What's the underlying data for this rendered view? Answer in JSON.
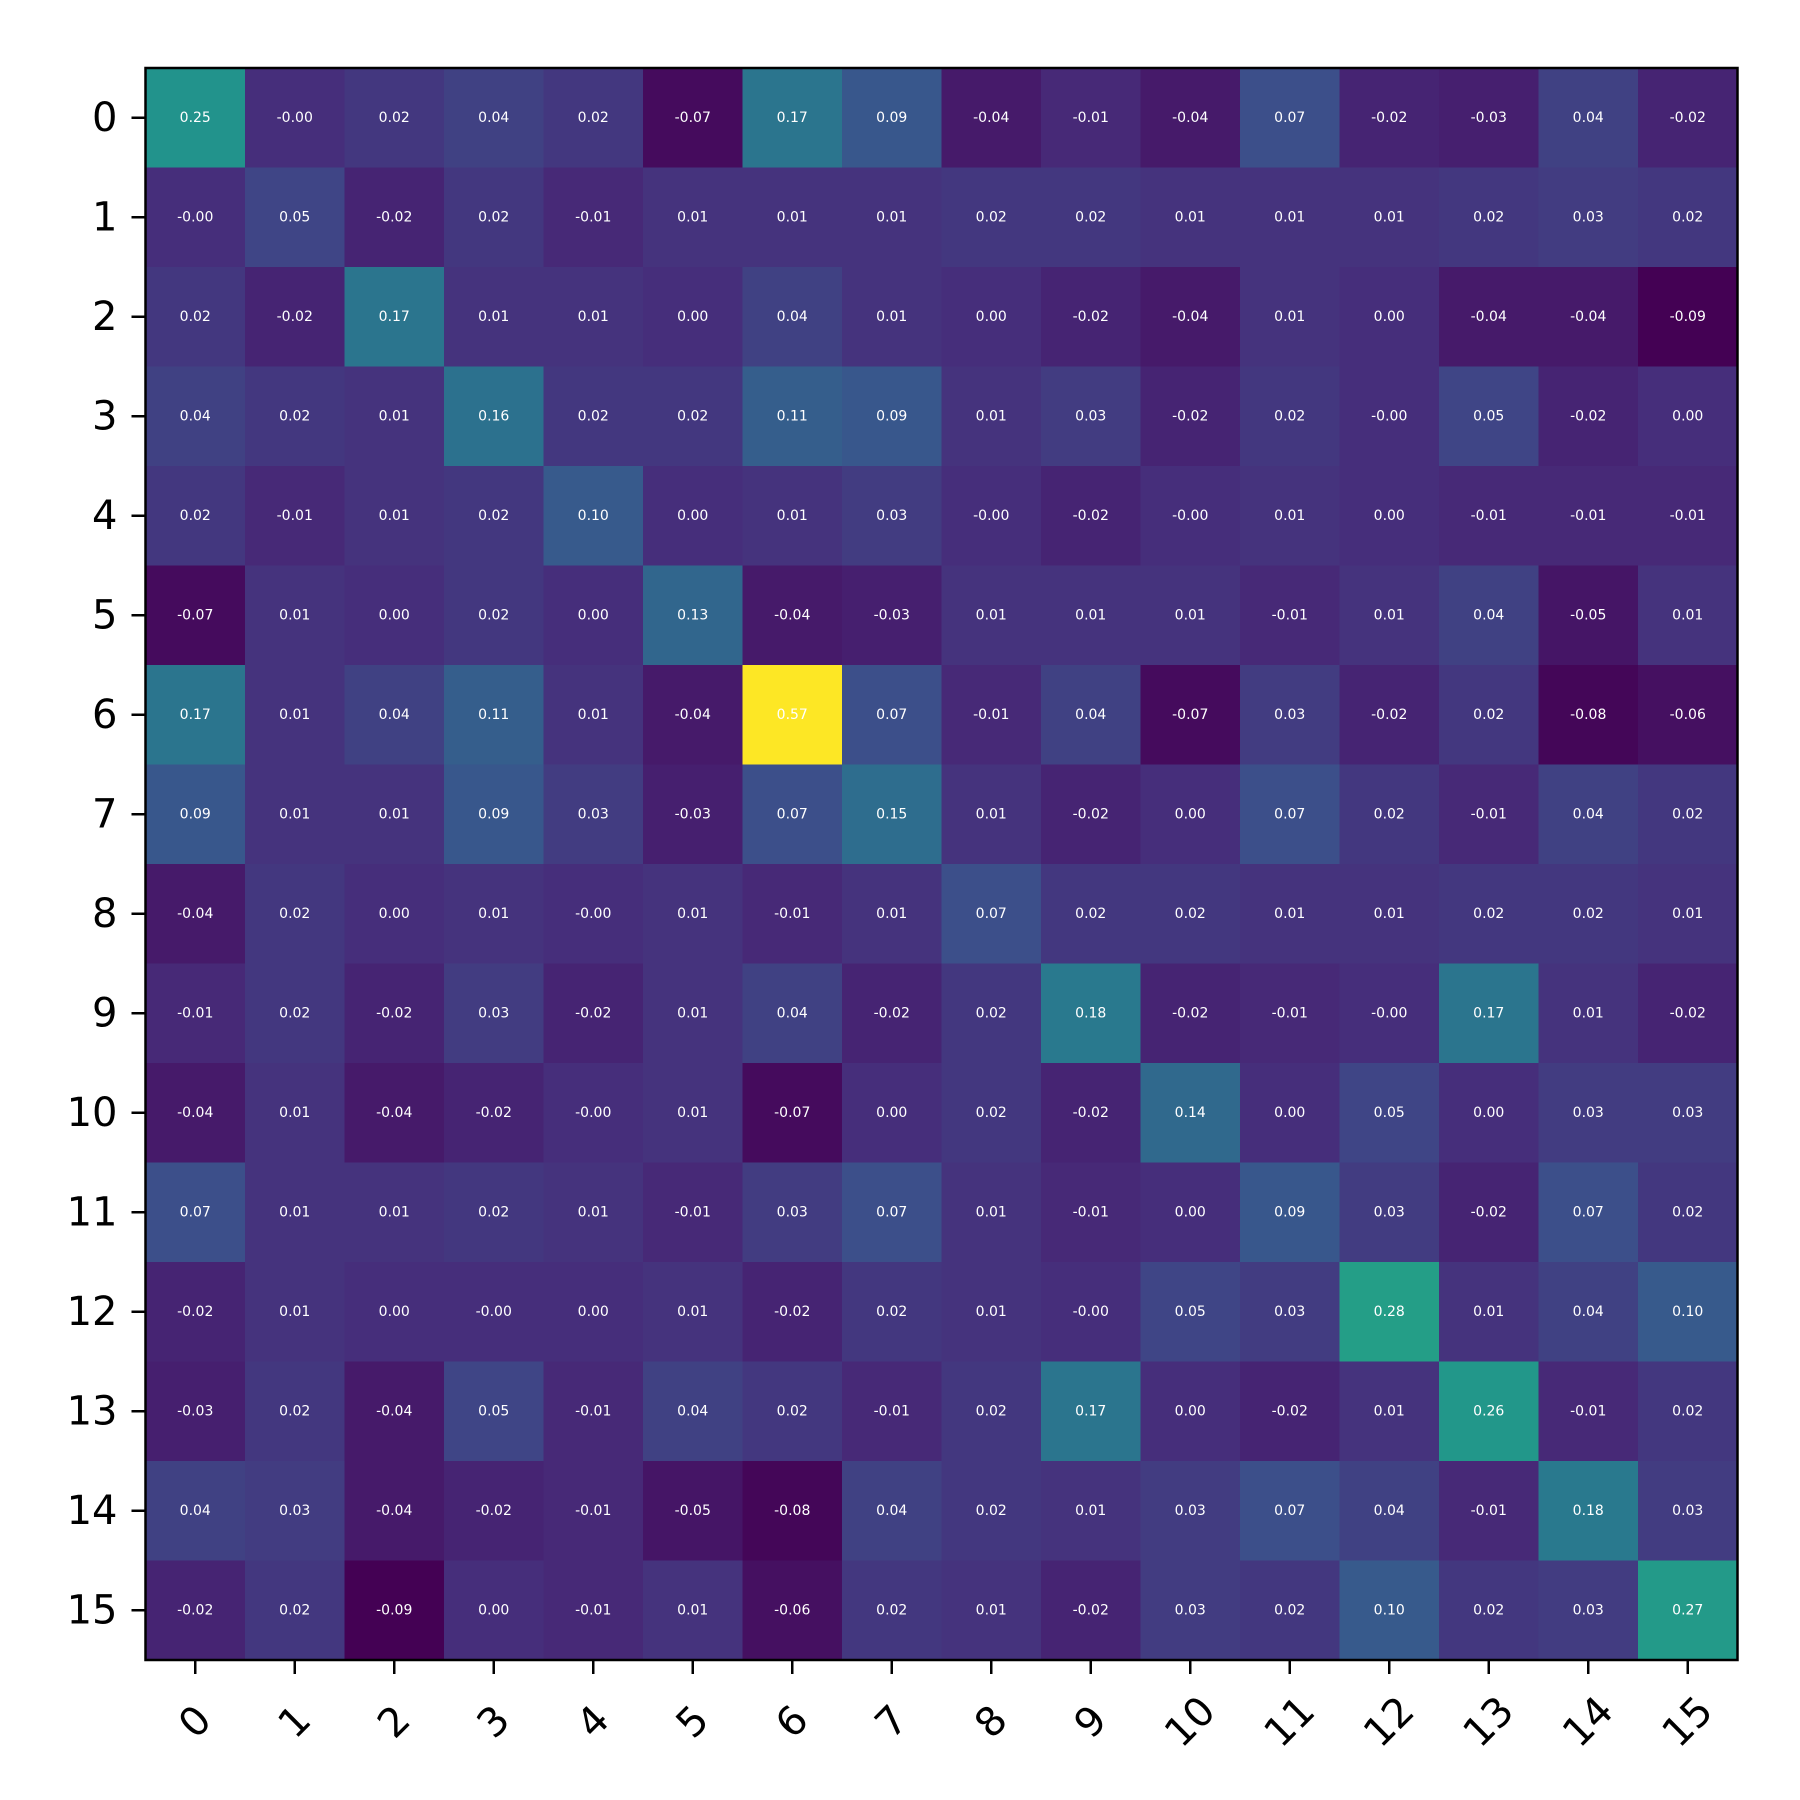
{
  "chart_data": {
    "type": "heatmap",
    "title": "",
    "xlabel": "",
    "ylabel": "",
    "colormap": "viridis",
    "vmin": -0.09,
    "vmax": 0.57,
    "grid": false,
    "x_tick_rotation_deg": 45,
    "x_categories": [
      "0",
      "1",
      "2",
      "3",
      "4",
      "5",
      "6",
      "7",
      "8",
      "9",
      "10",
      "11",
      "12",
      "13",
      "14",
      "15"
    ],
    "y_categories": [
      "0",
      "1",
      "2",
      "3",
      "4",
      "5",
      "6",
      "7",
      "8",
      "9",
      "10",
      "11",
      "12",
      "13",
      "14",
      "15"
    ],
    "values": [
      [
        0.25,
        -0.0,
        0.02,
        0.04,
        0.02,
        -0.07,
        0.17,
        0.09,
        -0.04,
        -0.01,
        -0.04,
        0.07,
        -0.02,
        -0.03,
        0.04,
        -0.02
      ],
      [
        -0.0,
        0.05,
        -0.02,
        0.02,
        -0.01,
        0.01,
        0.01,
        0.01,
        0.02,
        0.02,
        0.01,
        0.01,
        0.01,
        0.02,
        0.03,
        0.02
      ],
      [
        0.02,
        -0.02,
        0.17,
        0.01,
        0.01,
        0.0,
        0.04,
        0.01,
        0.0,
        -0.02,
        -0.04,
        0.01,
        0.0,
        -0.04,
        -0.04,
        -0.09
      ],
      [
        0.04,
        0.02,
        0.01,
        0.16,
        0.02,
        0.02,
        0.11,
        0.09,
        0.01,
        0.03,
        -0.02,
        0.02,
        -0.0,
        0.05,
        -0.02,
        0.0
      ],
      [
        0.02,
        -0.01,
        0.01,
        0.02,
        0.1,
        0.0,
        0.01,
        0.03,
        -0.0,
        -0.02,
        -0.0,
        0.01,
        0.0,
        -0.01,
        -0.01,
        -0.01
      ],
      [
        -0.07,
        0.01,
        0.0,
        0.02,
        0.0,
        0.13,
        -0.04,
        -0.03,
        0.01,
        0.01,
        0.01,
        -0.01,
        0.01,
        0.04,
        -0.05,
        0.01
      ],
      [
        0.17,
        0.01,
        0.04,
        0.11,
        0.01,
        -0.04,
        0.57,
        0.07,
        -0.01,
        0.04,
        -0.07,
        0.03,
        -0.02,
        0.02,
        -0.08,
        -0.06
      ],
      [
        0.09,
        0.01,
        0.01,
        0.09,
        0.03,
        -0.03,
        0.07,
        0.15,
        0.01,
        -0.02,
        0.0,
        0.07,
        0.02,
        -0.01,
        0.04,
        0.02
      ],
      [
        -0.04,
        0.02,
        0.0,
        0.01,
        -0.0,
        0.01,
        -0.01,
        0.01,
        0.07,
        0.02,
        0.02,
        0.01,
        0.01,
        0.02,
        0.02,
        0.01
      ],
      [
        -0.01,
        0.02,
        -0.02,
        0.03,
        -0.02,
        0.01,
        0.04,
        -0.02,
        0.02,
        0.18,
        -0.02,
        -0.01,
        -0.0,
        0.17,
        0.01,
        -0.02
      ],
      [
        -0.04,
        0.01,
        -0.04,
        -0.02,
        -0.0,
        0.01,
        -0.07,
        0.0,
        0.02,
        -0.02,
        0.14,
        0.0,
        0.05,
        0.0,
        0.03,
        0.03
      ],
      [
        0.07,
        0.01,
        0.01,
        0.02,
        0.01,
        -0.01,
        0.03,
        0.07,
        0.01,
        -0.01,
        0.0,
        0.09,
        0.03,
        -0.02,
        0.07,
        0.02
      ],
      [
        -0.02,
        0.01,
        0.0,
        -0.0,
        0.0,
        0.01,
        -0.02,
        0.02,
        0.01,
        -0.0,
        0.05,
        0.03,
        0.28,
        0.01,
        0.04,
        0.1
      ],
      [
        -0.03,
        0.02,
        -0.04,
        0.05,
        -0.01,
        0.04,
        0.02,
        -0.01,
        0.02,
        0.17,
        0.0,
        -0.02,
        0.01,
        0.26,
        -0.01,
        0.02
      ],
      [
        0.04,
        0.03,
        -0.04,
        -0.02,
        -0.01,
        -0.05,
        -0.08,
        0.04,
        0.02,
        0.01,
        0.03,
        0.07,
        0.04,
        -0.01,
        0.18,
        0.03
      ],
      [
        -0.02,
        0.02,
        -0.09,
        0.0,
        -0.01,
        0.01,
        -0.06,
        0.02,
        0.01,
        -0.02,
        0.03,
        0.02,
        0.1,
        0.02,
        0.03,
        0.27
      ]
    ],
    "cell_labels": [
      [
        "0.25",
        "-0.00",
        "0.02",
        "0.04",
        "0.02",
        "-0.07",
        "0.17",
        "0.09",
        "-0.04",
        "-0.01",
        "-0.04",
        "0.07",
        "-0.02",
        "-0.03",
        "0.04",
        "-0.02"
      ],
      [
        "-0.00",
        "0.05",
        "-0.02",
        "0.02",
        "-0.01",
        "0.01",
        "0.01",
        "0.01",
        "0.02",
        "0.02",
        "0.01",
        "0.01",
        "0.01",
        "0.02",
        "0.03",
        "0.02"
      ],
      [
        "0.02",
        "-0.02",
        "0.17",
        "0.01",
        "0.01",
        "0.00",
        "0.04",
        "0.01",
        "0.00",
        "-0.02",
        "-0.04",
        "0.01",
        "0.00",
        "-0.04",
        "-0.04",
        "-0.09"
      ],
      [
        "0.04",
        "0.02",
        "0.01",
        "0.16",
        "0.02",
        "0.02",
        "0.11",
        "0.09",
        "0.01",
        "0.03",
        "-0.02",
        "0.02",
        "-0.00",
        "0.05",
        "-0.02",
        "0.00"
      ],
      [
        "0.02",
        "-0.01",
        "0.01",
        "0.02",
        "0.10",
        "0.00",
        "0.01",
        "0.03",
        "-0.00",
        "-0.02",
        "-0.00",
        "0.01",
        "0.00",
        "-0.01",
        "-0.01",
        "-0.01"
      ],
      [
        "-0.07",
        "0.01",
        "0.00",
        "0.02",
        "0.00",
        "0.13",
        "-0.04",
        "-0.03",
        "0.01",
        "0.01",
        "0.01",
        "-0.01",
        "0.01",
        "0.04",
        "-0.05",
        "0.01"
      ],
      [
        "0.17",
        "0.01",
        "0.04",
        "0.11",
        "0.01",
        "-0.04",
        "0.57",
        "0.07",
        "-0.01",
        "0.04",
        "-0.07",
        "0.03",
        "-0.02",
        "0.02",
        "-0.08",
        "-0.06"
      ],
      [
        "0.09",
        "0.01",
        "0.01",
        "0.09",
        "0.03",
        "-0.03",
        "0.07",
        "0.15",
        "0.01",
        "-0.02",
        "0.00",
        "0.07",
        "0.02",
        "-0.01",
        "0.04",
        "0.02"
      ],
      [
        "-0.04",
        "0.02",
        "0.00",
        "0.01",
        "-0.00",
        "0.01",
        "-0.01",
        "0.01",
        "0.07",
        "0.02",
        "0.02",
        "0.01",
        "0.01",
        "0.02",
        "0.02",
        "0.01"
      ],
      [
        "-0.01",
        "0.02",
        "-0.02",
        "0.03",
        "-0.02",
        "0.01",
        "0.04",
        "-0.02",
        "0.02",
        "0.18",
        "-0.02",
        "-0.01",
        "-0.00",
        "0.17",
        "0.01",
        "-0.02"
      ],
      [
        "-0.04",
        "0.01",
        "-0.04",
        "-0.02",
        "-0.00",
        "0.01",
        "-0.07",
        "0.00",
        "0.02",
        "-0.02",
        "0.14",
        "0.00",
        "0.05",
        "0.00",
        "0.03",
        "0.03"
      ],
      [
        "0.07",
        "0.01",
        "0.01",
        "0.02",
        "0.01",
        "-0.01",
        "0.03",
        "0.07",
        "0.01",
        "-0.01",
        "0.00",
        "0.09",
        "0.03",
        "-0.02",
        "0.07",
        "0.02"
      ],
      [
        "-0.02",
        "0.01",
        "0.00",
        "-0.00",
        "0.00",
        "0.01",
        "-0.02",
        "0.02",
        "0.01",
        "-0.00",
        "0.05",
        "0.03",
        "0.28",
        "0.01",
        "0.04",
        "0.10"
      ],
      [
        "-0.03",
        "0.02",
        "-0.04",
        "0.05",
        "-0.01",
        "0.04",
        "0.02",
        "-0.01",
        "0.02",
        "0.17",
        "0.00",
        "-0.02",
        "0.01",
        "0.26",
        "-0.01",
        "0.02"
      ],
      [
        "0.04",
        "0.03",
        "-0.04",
        "-0.02",
        "-0.01",
        "-0.05",
        "-0.08",
        "0.04",
        "0.02",
        "0.01",
        "0.03",
        "0.07",
        "0.04",
        "-0.01",
        "0.18",
        "0.03"
      ],
      [
        "-0.02",
        "0.02",
        "-0.09",
        "0.00",
        "-0.01",
        "0.01",
        "-0.06",
        "0.02",
        "0.01",
        "-0.02",
        "0.03",
        "0.02",
        "0.10",
        "0.02",
        "0.03",
        "0.27"
      ]
    ]
  }
}
